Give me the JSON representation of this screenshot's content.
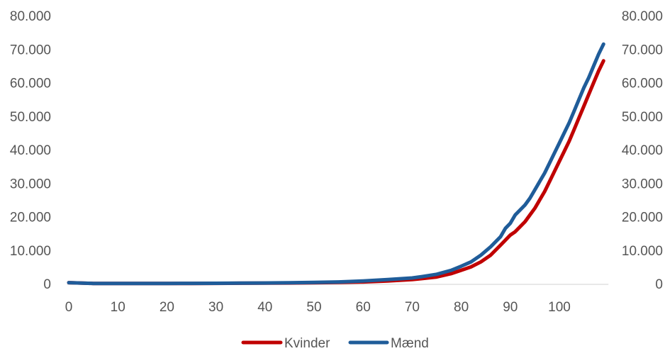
{
  "chart_data": {
    "type": "line",
    "ylim": [
      0,
      80000
    ],
    "xlim": [
      0,
      110
    ],
    "y_ticks": [
      "0",
      "10.000",
      "20.000",
      "30.000",
      "40.000",
      "50.000",
      "60.000",
      "70.000",
      "80.000"
    ],
    "x_ticks": [
      "0",
      "10",
      "20",
      "30",
      "40",
      "50",
      "60",
      "70",
      "80",
      "90",
      "100"
    ],
    "grid": false,
    "legend_placement": "bottom",
    "x": [
      0,
      5,
      10,
      15,
      20,
      25,
      30,
      35,
      40,
      45,
      50,
      55,
      60,
      65,
      70,
      72,
      75,
      78,
      80,
      82,
      84,
      86,
      88,
      89,
      90,
      91,
      92,
      93,
      94,
      95,
      96,
      97,
      98,
      99,
      100,
      101,
      102,
      103,
      104,
      105,
      106,
      107,
      108,
      109
    ],
    "series": [
      {
        "name": "Kvinder",
        "color": "#C00000",
        "values": [
          300,
          60,
          50,
          50,
          60,
          70,
          80,
          120,
          150,
          200,
          250,
          350,
          500,
          800,
          1200,
          1500,
          2000,
          3000,
          4000,
          5000,
          6500,
          8500,
          11500,
          13000,
          14500,
          15500,
          17000,
          18500,
          20500,
          22500,
          25000,
          27500,
          30500,
          33500,
          36500,
          39500,
          42500,
          46000,
          49500,
          53000,
          56500,
          60000,
          63500,
          66500
        ]
      },
      {
        "name": "Mænd",
        "color": "#1F5C99",
        "values": [
          300,
          60,
          50,
          60,
          70,
          80,
          100,
          150,
          200,
          260,
          350,
          500,
          800,
          1200,
          1700,
          2100,
          2800,
          4000,
          5200,
          6500,
          8500,
          11000,
          14000,
          16500,
          18000,
          20500,
          22000,
          23500,
          25500,
          28000,
          30500,
          33000,
          36000,
          39000,
          42000,
          45000,
          48000,
          51500,
          55000,
          58500,
          61500,
          65000,
          68500,
          71500
        ]
      }
    ]
  }
}
